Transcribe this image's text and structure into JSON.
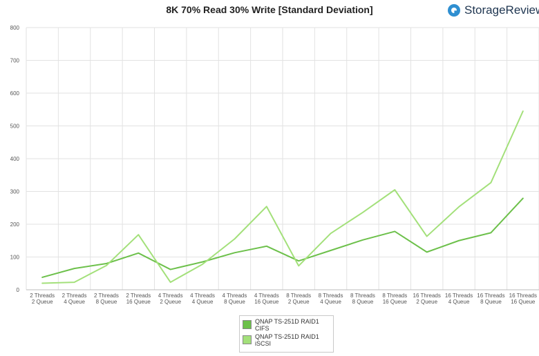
{
  "title": "8K 70% Read 30% Write [Standard Deviation]",
  "brand": {
    "icon": "storagereview-logo-icon",
    "name": "StorageReview"
  },
  "chart_data": {
    "type": "line",
    "title": "8K 70% Read 30% Write [Standard Deviation]",
    "xlabel": "",
    "ylabel": "",
    "ylim": [
      0,
      800
    ],
    "yticks": [
      0,
      100,
      200,
      300,
      400,
      500,
      600,
      700,
      800
    ],
    "grid": true,
    "legend_position": "bottom",
    "categories": [
      "2 Threads\n2 Queue",
      "2 Threads\n4 Queue",
      "2 Threads\n8 Queue",
      "2 Threads\n16 Queue",
      "4 Threads\n2 Queue",
      "4 Threads\n4 Queue",
      "4 Threads\n8 Queue",
      "4 Threads\n16 Queue",
      "8 Threads\n2 Queue",
      "8 Threads\n4 Queue",
      "8 Threads\n8 Queue",
      "8 Threads\n16 Queue",
      "16 Threads\n2 Queue",
      "16 Threads\n4 Queue",
      "16 Threads\n8 Queue",
      "16 Threads\n16 Queue"
    ],
    "series": [
      {
        "name": "QNAP TS-251D RAID1\nCIFS",
        "color": "#6cc04a",
        "values": [
          38,
          65,
          80,
          112,
          62,
          85,
          113,
          133,
          88,
          120,
          152,
          178,
          115,
          150,
          174,
          279
        ]
      },
      {
        "name": "QNAP TS-251D RAID1\niSCSI",
        "color": "#a3e07a",
        "values": [
          20,
          23,
          74,
          168,
          23,
          78,
          155,
          254,
          73,
          172,
          236,
          305,
          163,
          253,
          327,
          545
        ]
      }
    ]
  }
}
